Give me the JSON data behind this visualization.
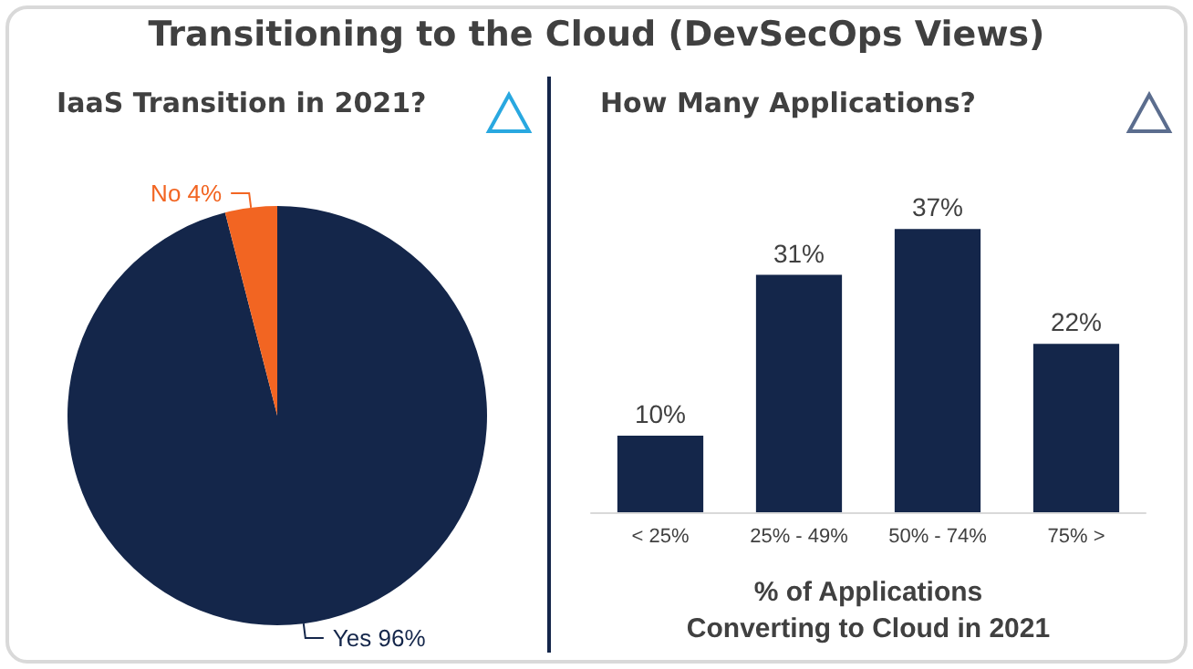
{
  "chart_data": [
    {
      "type": "pie",
      "title": "IaaS Transition in 2021?",
      "annotations": [
        "Transitioning to the Cloud (DevSecOps Views)"
      ],
      "categories": [
        "Yes",
        "No"
      ],
      "values": [
        96,
        4
      ],
      "colors": [
        "#14264a",
        "#f26522"
      ],
      "value_labels": [
        "96%",
        "4%"
      ],
      "legend": false
    },
    {
      "type": "bar",
      "title": "How Many Applications?",
      "xlabel": "% of Applications\nConverting to Cloud in 2021",
      "categories": [
        "< 25%",
        "25% - 49%",
        "50% - 74%",
        "75% >"
      ],
      "values": [
        10,
        31,
        37,
        22
      ],
      "color": "#14264a",
      "value_labels": [
        "10%",
        "31%",
        "37%",
        "22%"
      ],
      "legend": false
    }
  ]
}
